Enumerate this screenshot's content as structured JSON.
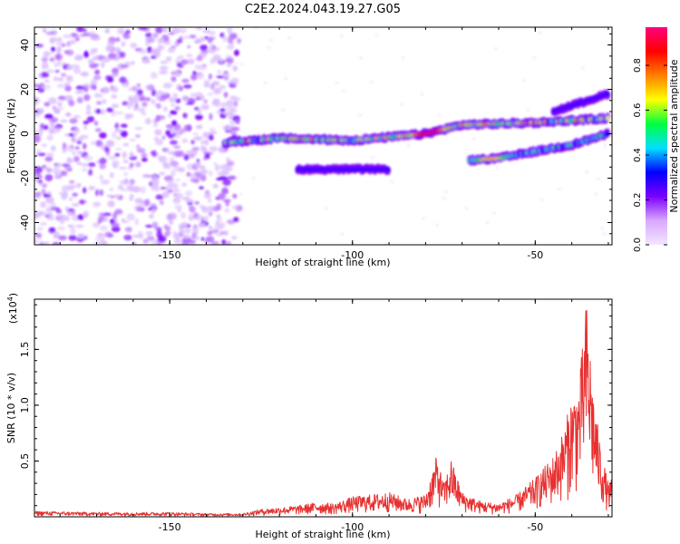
{
  "figure": {
    "title": "C2E2.2024.043.19.27.G05"
  },
  "chart_data": [
    {
      "type": "heatmap",
      "name": "spectrogram",
      "xlabel": "Height of straight line (km)",
      "ylabel": "Frequency (Hz)",
      "xlim": [
        -187,
        -29
      ],
      "ylim": [
        -50,
        48
      ],
      "xticks": [
        -150,
        -100,
        -50
      ],
      "yticks": [
        -40,
        -20,
        0,
        20,
        40
      ],
      "colorbar": {
        "label": "Normalized spectral amplitude",
        "range": [
          0,
          0.97
        ],
        "ticks": [
          0,
          0.2,
          0.4,
          0.6,
          0.8
        ],
        "colormap": [
          "#f2e6ff",
          "#d9a8ff",
          "#7b00ff",
          "#0000ff",
          "#00e0ff",
          "#00ff40",
          "#ffff00",
          "#ff8000",
          "#ff0000",
          "#ff0080"
        ]
      },
      "noise_region": {
        "x": [
          -187,
          -131
        ],
        "y": [
          -50,
          48
        ],
        "amplitude": 0.15
      },
      "tracks": [
        {
          "name": "main-track",
          "points": [
            [
              -135,
              -4
            ],
            [
              -120,
              -2
            ],
            [
              -100,
              -3
            ],
            [
              -80,
              0
            ],
            [
              -70,
              4
            ],
            [
              -50,
              5
            ],
            [
              -30,
              7
            ]
          ],
          "peak": [
            -79,
            0
          ],
          "peak_amplitude": 0.95
        },
        {
          "name": "upper-track",
          "points": [
            [
              -45,
              10
            ],
            [
              -30,
              18
            ]
          ],
          "peak_amplitude": 0.25
        },
        {
          "name": "lower-track",
          "points": [
            [
              -115,
              -16
            ],
            [
              -100,
              -16
            ],
            [
              -90,
              -16
            ]
          ],
          "peak_amplitude": 0.35
        },
        {
          "name": "lower-track-2",
          "points": [
            [
              -68,
              -12
            ],
            [
              -60,
              -11
            ],
            [
              -50,
              -8
            ],
            [
              -40,
              -5
            ],
            [
              -30,
              0
            ]
          ],
          "peak": [
            -62,
            -11
          ],
          "peak_amplitude": 0.7
        }
      ]
    },
    {
      "type": "line",
      "name": "snr",
      "xlabel": "Height of straight line (km)",
      "ylabel": "SNR (10 * v/v)",
      "scale_label": "(x10",
      "scale_exp": "4",
      "scale_close": ")",
      "xlim": [
        -187,
        -29
      ],
      "ylim": [
        0,
        1.95
      ],
      "xticks": [
        -150,
        -100,
        -50
      ],
      "yticks": [
        0.5,
        1.0,
        1.5
      ],
      "ytick_labels": [
        "0.5",
        "1.0",
        "1.5"
      ],
      "line_color": "#e83030",
      "envelope": [
        [
          -187,
          0.05
        ],
        [
          -170,
          0.04
        ],
        [
          -150,
          0.04
        ],
        [
          -140,
          0.03
        ],
        [
          -130,
          0.03
        ],
        [
          -125,
          0.07
        ],
        [
          -115,
          0.1
        ],
        [
          -110,
          0.13
        ],
        [
          -105,
          0.12
        ],
        [
          -100,
          0.18
        ],
        [
          -95,
          0.2
        ],
        [
          -90,
          0.22
        ],
        [
          -85,
          0.16
        ],
        [
          -80,
          0.2
        ],
        [
          -77,
          0.55
        ],
        [
          -75,
          0.3
        ],
        [
          -73,
          0.52
        ],
        [
          -70,
          0.22
        ],
        [
          -65,
          0.14
        ],
        [
          -60,
          0.12
        ],
        [
          -55,
          0.2
        ],
        [
          -50,
          0.35
        ],
        [
          -45,
          0.55
        ],
        [
          -42,
          0.8
        ],
        [
          -40,
          1.1
        ],
        [
          -38,
          1.2
        ],
        [
          -36,
          1.95
        ],
        [
          -34,
          1.1
        ],
        [
          -32,
          0.6
        ],
        [
          -30,
          0.3
        ],
        [
          -29,
          0.35
        ]
      ]
    }
  ]
}
